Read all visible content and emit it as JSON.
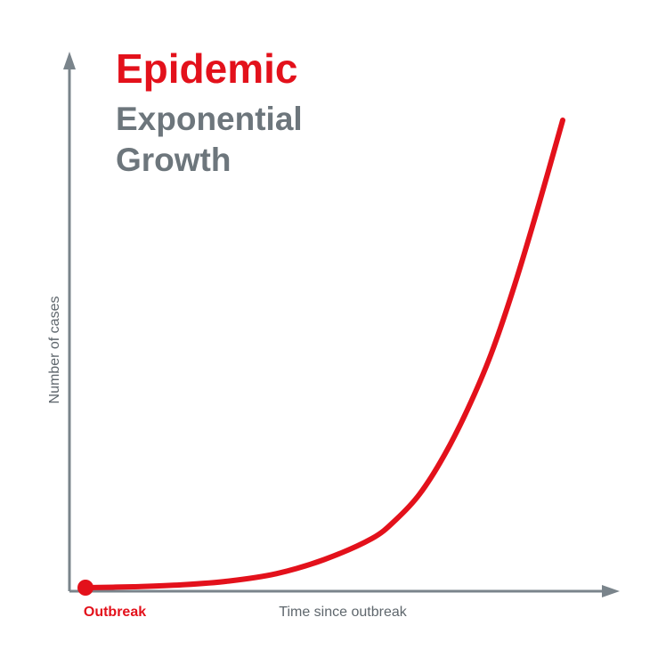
{
  "title": "Epidemic",
  "subtitle_lines": [
    "Exponential",
    "Growth"
  ],
  "colors": {
    "accent": "#e3111b",
    "axis": "#7a848b",
    "subtitle": "#6d767c",
    "label": "#5f676d"
  },
  "chart_data": {
    "type": "line",
    "title": "Epidemic",
    "subtitle": "Exponential Growth",
    "xlabel": "Time since outbreak",
    "ylabel": "Number of cases",
    "xlim": [
      0,
      1
    ],
    "ylim": [
      0,
      1
    ],
    "grid": false,
    "legend": "none",
    "start_marker_label": "Outbreak",
    "series": [
      {
        "color": "#e3111b",
        "x": [
          0,
          0.1,
          0.2,
          0.3,
          0.4,
          0.5,
          0.6,
          0.65,
          0.7,
          0.75,
          0.8,
          0.85,
          0.9,
          0.95,
          1.0
        ],
        "y": [
          0,
          0.002,
          0.006,
          0.014,
          0.03,
          0.06,
          0.105,
          0.145,
          0.2,
          0.28,
          0.38,
          0.5,
          0.65,
          0.82,
          1.0
        ]
      }
    ]
  }
}
